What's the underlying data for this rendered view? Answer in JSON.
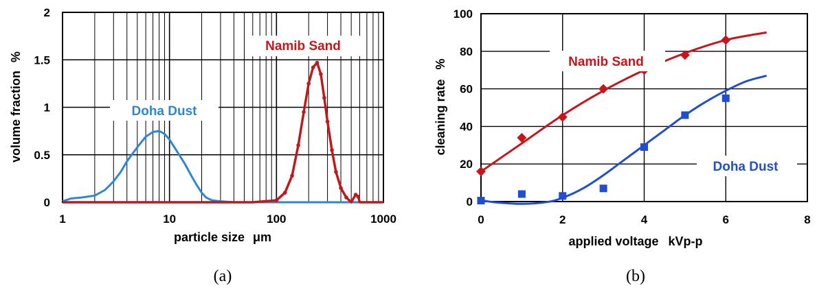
{
  "colors": {
    "blue": "#2c86d1",
    "red": "#c0191c",
    "blue_b": "#1f4fd0",
    "red_b": "#c8141a"
  },
  "chart_data": [
    {
      "type": "line",
      "panel_label": "(a)",
      "xlabel": "particle size",
      "xunit": "μm",
      "ylabel": "volume fraction",
      "yunit": "%",
      "xscale": "log",
      "xlim": [
        1,
        1000
      ],
      "ylim": [
        0,
        2
      ],
      "xticks": [
        "1",
        "10",
        "100",
        "1000"
      ],
      "yticks": [
        "0",
        "0.5",
        "1",
        "1.5",
        "2"
      ],
      "grid": true,
      "series": [
        {
          "name": "Doha Dust",
          "color": "#2c86d1",
          "x": [
            1,
            1.2,
            1.5,
            2,
            2.5,
            3,
            3.5,
            4,
            5,
            6,
            7,
            8,
            9,
            10,
            12,
            14,
            16,
            18,
            20,
            22,
            25,
            30,
            40,
            60,
            100,
            300,
            1000
          ],
          "y": [
            0.01,
            0.04,
            0.05,
            0.07,
            0.13,
            0.22,
            0.32,
            0.43,
            0.58,
            0.69,
            0.74,
            0.75,
            0.72,
            0.66,
            0.52,
            0.4,
            0.28,
            0.18,
            0.1,
            0.05,
            0.02,
            0.01,
            0,
            0,
            0,
            0,
            0
          ]
        },
        {
          "name": "Namib Sand",
          "color": "#c0191c",
          "x": [
            1,
            10,
            60,
            100,
            120,
            140,
            160,
            180,
            200,
            220,
            240,
            260,
            280,
            300,
            330,
            360,
            400,
            450,
            500,
            550,
            580,
            600,
            700,
            1000
          ],
          "y": [
            0,
            0,
            0,
            0.02,
            0.1,
            0.28,
            0.6,
            0.95,
            1.25,
            1.42,
            1.47,
            1.35,
            1.1,
            0.85,
            0.55,
            0.32,
            0.15,
            0.05,
            0,
            0.08,
            0.06,
            0,
            0,
            0
          ]
        }
      ]
    },
    {
      "type": "scatter",
      "panel_label": "(b)",
      "xlabel": "applied voltage",
      "xunit": "kVp-p",
      "ylabel": "cleaning rate",
      "yunit": "%",
      "xlim": [
        0,
        8
      ],
      "ylim": [
        0,
        100
      ],
      "xticks": [
        "0",
        "2",
        "4",
        "6",
        "8"
      ],
      "yticks": [
        "0",
        "20",
        "40",
        "60",
        "80",
        "100"
      ],
      "grid": true,
      "series": [
        {
          "name": "Namib Sand",
          "color": "#c8141a",
          "marker": "diamond",
          "points": [
            [
              0,
              16
            ],
            [
              1,
              34
            ],
            [
              2,
              45
            ],
            [
              3,
              60
            ],
            [
              4,
              70
            ],
            [
              5,
              78
            ],
            [
              6,
              86
            ]
          ],
          "fit": [
            [
              0,
              16
            ],
            [
              1,
              31
            ],
            [
              2,
              46
            ],
            [
              3,
              59
            ],
            [
              4,
              70
            ],
            [
              5,
              79
            ],
            [
              6,
              86
            ],
            [
              7,
              90
            ]
          ]
        },
        {
          "name": "Doha Dust",
          "color": "#1f4fd0",
          "marker": "square",
          "points": [
            [
              0,
              0.5
            ],
            [
              1,
              4
            ],
            [
              2,
              3
            ],
            [
              3,
              7
            ],
            [
              4,
              29
            ],
            [
              5,
              46
            ],
            [
              6,
              55
            ]
          ],
          "fit": [
            [
              0.05,
              0.5
            ],
            [
              0.4,
              -0.5
            ],
            [
              1.0,
              -1.2
            ],
            [
              1.6,
              -0.3
            ],
            [
              2.0,
              2
            ],
            [
              2.5,
              7
            ],
            [
              3.0,
              14
            ],
            [
              3.5,
              22
            ],
            [
              4.0,
              30
            ],
            [
              4.5,
              38
            ],
            [
              5.0,
              46
            ],
            [
              5.5,
              53
            ],
            [
              6.0,
              59
            ],
            [
              6.5,
              64
            ],
            [
              7.0,
              67
            ]
          ]
        }
      ]
    }
  ]
}
